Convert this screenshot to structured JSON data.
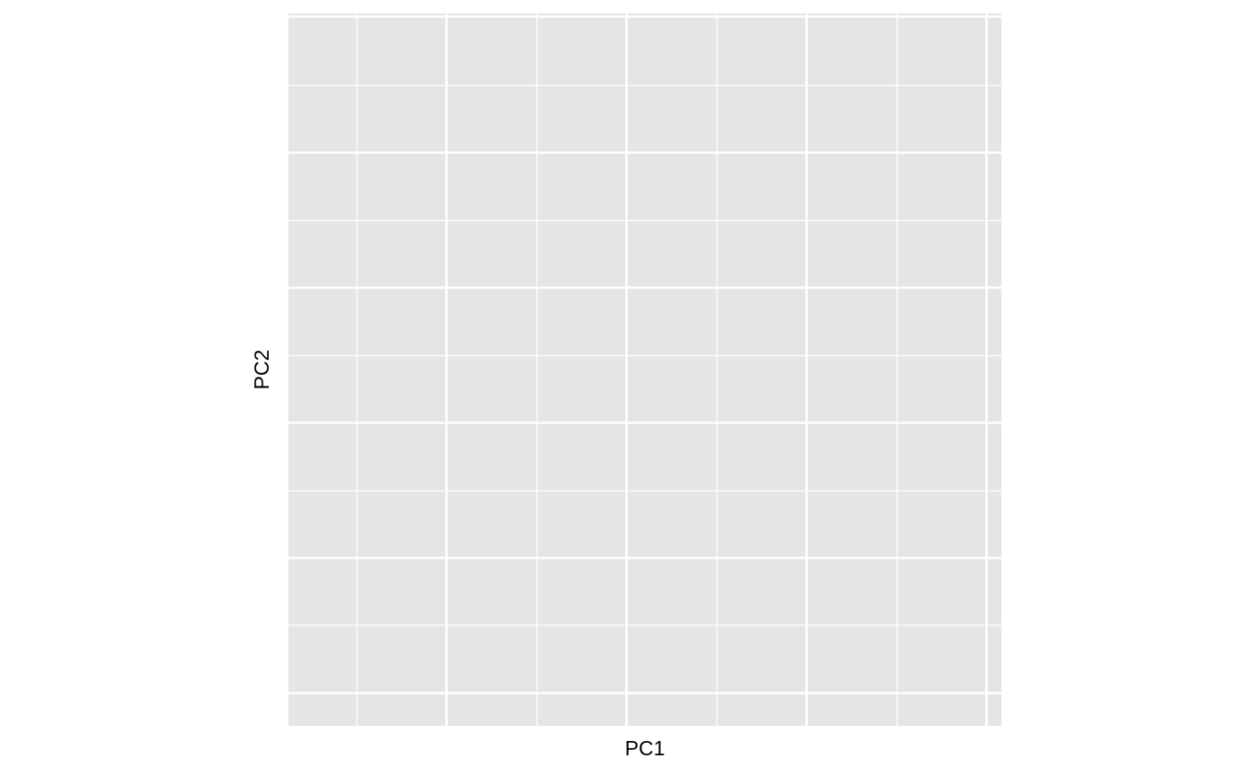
{
  "chart_data": {
    "type": "scatter",
    "title": "",
    "xlabel": "PC1",
    "ylabel": "PC2",
    "series": [],
    "grid": true,
    "x_tick_labels_shown": false,
    "y_tick_labels_shown": false,
    "major_gridlines_x": 5,
    "minor_gridlines_x": 4,
    "major_gridlines_y": 5,
    "minor_gridlines_y": 6
  },
  "colors": {
    "panel_background": "#e5e5e5",
    "grid_line": "#ffffff",
    "page_background": "#ffffff",
    "text": "#000000"
  }
}
